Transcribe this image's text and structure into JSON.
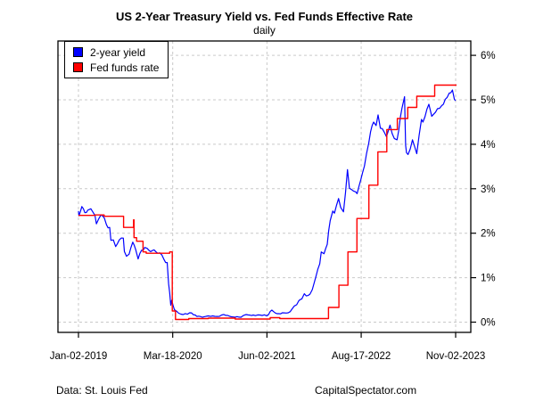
{
  "header": {
    "title": "US 2-Year Treasury Yield vs. Fed Funds Effective Rate",
    "subtitle": "daily"
  },
  "footer": {
    "left": "Data: St. Louis Fed",
    "right": "CapitalSpectator.com"
  },
  "chart_data": {
    "type": "line",
    "title": "US 2-Year Treasury Yield vs. Fed Funds Effective Rate",
    "subtitle": "daily",
    "grid": true,
    "grid_color": "#C9C9C9",
    "axis_color": "#000000",
    "background": "#FFFFFF",
    "ylim": [
      -0.23,
      6.32
    ],
    "y_axis_side": "right",
    "y_ticks": [
      0,
      1,
      2,
      3,
      4,
      5,
      6
    ],
    "y_tick_labels": [
      "0%",
      "1%",
      "2%",
      "3%",
      "4%",
      "5%",
      "6%"
    ],
    "x_range": [
      "2019-01-02",
      "2023-11-02"
    ],
    "x_tick_dates": [
      "2019-01-02",
      "2020-03-18",
      "2021-06-02",
      "2022-08-17",
      "2023-11-02"
    ],
    "x_tick_labels": [
      "Jan-02-2019",
      "Mar-18-2020",
      "Jun-02-2021",
      "Aug-17-2022",
      "Nov-02-2023"
    ],
    "legend": {
      "position": "top-left",
      "entries": [
        {
          "label": "2-year yield",
          "color": "#0000FF"
        },
        {
          "label": "Fed funds rate",
          "color": "#FF0000"
        }
      ]
    },
    "noise_amplitude": 0.045,
    "series": [
      {
        "name": "2-year yield",
        "color": "#0000FF",
        "style": "line",
        "points": [
          [
            "2019-01-02",
            2.5
          ],
          [
            "2019-01-04",
            2.39
          ],
          [
            "2019-01-18",
            2.6
          ],
          [
            "2019-02-01",
            2.46
          ],
          [
            "2019-02-15",
            2.52
          ],
          [
            "2019-03-01",
            2.55
          ],
          [
            "2019-03-11",
            2.47
          ],
          [
            "2019-03-20",
            2.4
          ],
          [
            "2019-03-27",
            2.21
          ],
          [
            "2019-04-17",
            2.41
          ],
          [
            "2019-05-03",
            2.34
          ],
          [
            "2019-05-13",
            2.19
          ],
          [
            "2019-05-28",
            2.13
          ],
          [
            "2019-06-03",
            1.84
          ],
          [
            "2019-06-14",
            1.85
          ],
          [
            "2019-06-25",
            1.7
          ],
          [
            "2019-07-12",
            1.85
          ],
          [
            "2019-07-31",
            1.89
          ],
          [
            "2019-08-05",
            1.59
          ],
          [
            "2019-08-15",
            1.48
          ],
          [
            "2019-08-27",
            1.53
          ],
          [
            "2019-09-13",
            1.8
          ],
          [
            "2019-09-27",
            1.63
          ],
          [
            "2019-10-08",
            1.42
          ],
          [
            "2019-10-25",
            1.62
          ],
          [
            "2019-11-08",
            1.68
          ],
          [
            "2019-11-29",
            1.61
          ],
          [
            "2019-12-13",
            1.61
          ],
          [
            "2019-12-31",
            1.58
          ],
          [
            "2020-01-17",
            1.56
          ],
          [
            "2020-02-07",
            1.4
          ],
          [
            "2020-02-21",
            1.34
          ],
          [
            "2020-02-28",
            0.86
          ],
          [
            "2020-03-04",
            0.66
          ],
          [
            "2020-03-09",
            0.38
          ],
          [
            "2020-03-13",
            0.49
          ],
          [
            "2020-03-20",
            0.37
          ],
          [
            "2020-03-26",
            0.28
          ],
          [
            "2020-04-15",
            0.2
          ],
          [
            "2020-05-06",
            0.17
          ],
          [
            "2020-06-05",
            0.21
          ],
          [
            "2020-07-01",
            0.16
          ],
          [
            "2020-08-03",
            0.11
          ],
          [
            "2020-09-01",
            0.14
          ],
          [
            "2020-10-01",
            0.13
          ],
          [
            "2020-11-02",
            0.16
          ],
          [
            "2020-12-01",
            0.15
          ],
          [
            "2021-01-04",
            0.11
          ],
          [
            "2021-02-01",
            0.11
          ],
          [
            "2021-02-25",
            0.17
          ],
          [
            "2021-03-30",
            0.16
          ],
          [
            "2021-04-30",
            0.16
          ],
          [
            "2021-06-01",
            0.14
          ],
          [
            "2021-06-25",
            0.27
          ],
          [
            "2021-07-19",
            0.19
          ],
          [
            "2021-08-13",
            0.21
          ],
          [
            "2021-09-10",
            0.21
          ],
          [
            "2021-09-28",
            0.3
          ],
          [
            "2021-10-19",
            0.39
          ],
          [
            "2021-10-29",
            0.48
          ],
          [
            "2021-11-12",
            0.52
          ],
          [
            "2021-11-24",
            0.64
          ],
          [
            "2021-12-03",
            0.59
          ],
          [
            "2021-12-20",
            0.63
          ],
          [
            "2021-12-31",
            0.73
          ],
          [
            "2022-01-18",
            1.04
          ],
          [
            "2022-02-04",
            1.31
          ],
          [
            "2022-02-11",
            1.58
          ],
          [
            "2022-02-24",
            1.54
          ],
          [
            "2022-03-11",
            1.75
          ],
          [
            "2022-03-25",
            2.28
          ],
          [
            "2022-04-06",
            2.5
          ],
          [
            "2022-04-14",
            2.45
          ],
          [
            "2022-05-03",
            2.78
          ],
          [
            "2022-05-13",
            2.58
          ],
          [
            "2022-05-26",
            2.48
          ],
          [
            "2022-06-14",
            3.43
          ],
          [
            "2022-06-23",
            3.01
          ],
          [
            "2022-07-06",
            2.97
          ],
          [
            "2022-07-29",
            2.89
          ],
          [
            "2022-08-15",
            3.2
          ],
          [
            "2022-09-01",
            3.51
          ],
          [
            "2022-09-21",
            4.02
          ],
          [
            "2022-09-30",
            4.28
          ],
          [
            "2022-10-14",
            4.5
          ],
          [
            "2022-10-26",
            4.42
          ],
          [
            "2022-11-04",
            4.66
          ],
          [
            "2022-11-15",
            4.36
          ],
          [
            "2022-12-02",
            4.28
          ],
          [
            "2022-12-13",
            4.17
          ],
          [
            "2022-12-30",
            4.43
          ],
          [
            "2023-01-19",
            4.13
          ],
          [
            "2023-02-01",
            4.1
          ],
          [
            "2023-02-24",
            4.81
          ],
          [
            "2023-03-08",
            5.07
          ],
          [
            "2023-03-13",
            3.98
          ],
          [
            "2023-03-17",
            3.81
          ],
          [
            "2023-03-24",
            3.77
          ],
          [
            "2023-04-14",
            4.1
          ],
          [
            "2023-05-04",
            3.79
          ],
          [
            "2023-05-26",
            4.56
          ],
          [
            "2023-06-02",
            4.5
          ],
          [
            "2023-06-30",
            4.9
          ],
          [
            "2023-07-13",
            4.63
          ],
          [
            "2023-08-09",
            4.8
          ],
          [
            "2023-08-29",
            4.87
          ],
          [
            "2023-09-14",
            5.01
          ],
          [
            "2023-10-03",
            5.15
          ],
          [
            "2023-10-18",
            5.22
          ],
          [
            "2023-10-27",
            5.01
          ],
          [
            "2023-11-02",
            4.98
          ]
        ]
      },
      {
        "name": "Fed funds rate",
        "color": "#FF0000",
        "style": "step",
        "points": [
          [
            "2019-01-02",
            2.4
          ],
          [
            "2019-03-21",
            2.41
          ],
          [
            "2019-05-02",
            2.38
          ],
          [
            "2019-08-01",
            2.13
          ],
          [
            "2019-09-17",
            2.3
          ],
          [
            "2019-09-19",
            1.9
          ],
          [
            "2019-10-01",
            1.82
          ],
          [
            "2019-10-31",
            1.58
          ],
          [
            "2019-11-15",
            1.55
          ],
          [
            "2020-03-04",
            1.58
          ],
          [
            "2020-03-16",
            0.25
          ],
          [
            "2020-03-31",
            0.06
          ],
          [
            "2020-06-01",
            0.08
          ],
          [
            "2020-09-01",
            0.09
          ],
          [
            "2021-01-04",
            0.07
          ],
          [
            "2021-06-17",
            0.1
          ],
          [
            "2021-08-01",
            0.08
          ],
          [
            "2022-03-17",
            0.33
          ],
          [
            "2022-05-05",
            0.83
          ],
          [
            "2022-06-16",
            1.58
          ],
          [
            "2022-07-28",
            2.33
          ],
          [
            "2022-09-22",
            3.08
          ],
          [
            "2022-11-03",
            3.83
          ],
          [
            "2022-12-15",
            4.33
          ],
          [
            "2023-02-02",
            4.58
          ],
          [
            "2023-03-23",
            4.83
          ],
          [
            "2023-05-04",
            5.08
          ],
          [
            "2023-07-27",
            5.33
          ],
          [
            "2023-11-02",
            5.33
          ]
        ]
      }
    ]
  }
}
